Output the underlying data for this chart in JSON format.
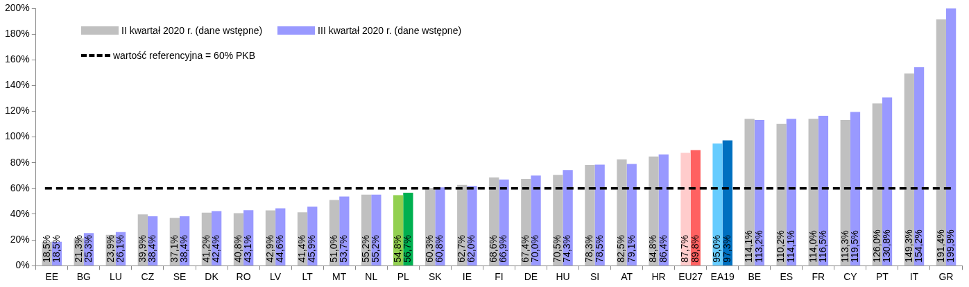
{
  "chart_data": {
    "type": "bar",
    "categories": [
      "EE",
      "BG",
      "LU",
      "CZ",
      "SE",
      "DK",
      "RO",
      "LV",
      "LT",
      "MT",
      "NL",
      "PL",
      "SK",
      "IE",
      "FI",
      "DE",
      "HU",
      "SI",
      "AT",
      "HR",
      "EU27",
      "EA19",
      "BE",
      "ES",
      "FR",
      "CY",
      "PT",
      "IT",
      "GR"
    ],
    "series": [
      {
        "name": "II kwartał 2020 r. (dane wstępne)",
        "color": "#c0c0c0",
        "colors": [
          "#c0c0c0",
          "#c0c0c0",
          "#c0c0c0",
          "#c0c0c0",
          "#c0c0c0",
          "#c0c0c0",
          "#c0c0c0",
          "#c0c0c0",
          "#c0c0c0",
          "#c0c0c0",
          "#c0c0c0",
          "#92d050",
          "#c0c0c0",
          "#c0c0c0",
          "#c0c0c0",
          "#c0c0c0",
          "#c0c0c0",
          "#c0c0c0",
          "#c0c0c0",
          "#c0c0c0",
          "#ffcccc",
          "#66ccff",
          "#c0c0c0",
          "#c0c0c0",
          "#c0c0c0",
          "#c0c0c0",
          "#c0c0c0",
          "#c0c0c0",
          "#c0c0c0"
        ],
        "values": [
          18.5,
          21.3,
          23.9,
          39.9,
          37.1,
          41.2,
          40.8,
          42.9,
          41.4,
          51.0,
          55.2,
          54.8,
          60.3,
          62.7,
          68.6,
          67.4,
          70.5,
          78.3,
          82.5,
          84.8,
          87.7,
          95.0,
          114.1,
          110.2,
          114.0,
          113.3,
          126.0,
          149.3,
          191.4
        ],
        "value_labels": [
          "18,5%",
          "21,3%",
          "23,9%",
          "39,9%",
          "37,1%",
          "41,2%",
          "40,8%",
          "42,9%",
          "41,4%",
          "51,0%",
          "55,2%",
          "54,8%",
          "60,3%",
          "62,7%",
          "68,6%",
          "67,4%",
          "70,5%",
          "78,3%",
          "82,5%",
          "84,8%",
          "87,7%",
          "95,0%",
          "114,1%",
          "110,2%",
          "114,0%",
          "113,3%",
          "126,0%",
          "149,3%",
          "191,4%"
        ]
      },
      {
        "name": "III kwartał 2020 r. (dane wstępne)",
        "color": "#9999ff",
        "colors": [
          "#9999ff",
          "#9999ff",
          "#9999ff",
          "#9999ff",
          "#9999ff",
          "#9999ff",
          "#9999ff",
          "#9999ff",
          "#9999ff",
          "#9999ff",
          "#9999ff",
          "#00b050",
          "#9999ff",
          "#9999ff",
          "#9999ff",
          "#9999ff",
          "#9999ff",
          "#9999ff",
          "#9999ff",
          "#9999ff",
          "#ff6161",
          "#0070c0",
          "#9999ff",
          "#9999ff",
          "#9999ff",
          "#9999ff",
          "#9999ff",
          "#9999ff",
          "#9999ff"
        ],
        "values": [
          18.5,
          25.3,
          26.1,
          38.4,
          38.4,
          42.4,
          43.1,
          44.6,
          45.9,
          53.7,
          55.2,
          56.7,
          60.8,
          62.0,
          66.9,
          70.0,
          74.3,
          78.5,
          79.1,
          86.4,
          89.8,
          97.3,
          113.2,
          114.1,
          116.5,
          119.5,
          130.8,
          154.2,
          199.9
        ],
        "value_labels": [
          "18,5%",
          "25,3%",
          "26,1%",
          "38,4%",
          "38,4%",
          "42,4%",
          "43,1%",
          "44,6%",
          "45,9%",
          "53,7%",
          "55,2%",
          "56,7%",
          "60,8%",
          "62,0%",
          "66,9%",
          "70,0%",
          "74,3%",
          "78,5%",
          "79,1%",
          "86,4%",
          "89,8%",
          "97,3%",
          "113,2%",
          "114,1%",
          "116,5%",
          "119,5%",
          "130,8%",
          "154,2%",
          "199,9%"
        ]
      }
    ],
    "ylim": [
      0,
      200
    ],
    "yticks": [
      {
        "value": 0,
        "label": "0%"
      },
      {
        "value": 20,
        "label": "20%"
      },
      {
        "value": 40,
        "label": "40%"
      },
      {
        "value": 60,
        "label": "60%"
      },
      {
        "value": 80,
        "label": "80%"
      },
      {
        "value": 100,
        "label": "100%"
      },
      {
        "value": 120,
        "label": "120%"
      },
      {
        "value": 140,
        "label": "140%"
      },
      {
        "value": 160,
        "label": "160%"
      },
      {
        "value": 180,
        "label": "180%"
      },
      {
        "value": 200,
        "label": "200%"
      }
    ],
    "ref_lines": [
      {
        "axis": "y",
        "value": 60,
        "label": "wartość referencyjna = 60% PKB",
        "color": "#000000",
        "line_style": "dashed"
      }
    ],
    "legend": "top left",
    "grid": false
  }
}
